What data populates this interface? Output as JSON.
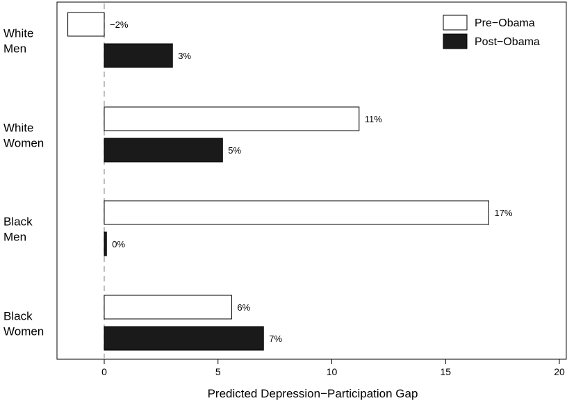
{
  "chart_data": {
    "type": "bar",
    "orientation": "horizontal",
    "categories": [
      "White Men",
      "White Women",
      "Black Men",
      "Black Women"
    ],
    "category_lines": [
      [
        "White",
        "Men"
      ],
      [
        "White",
        "Women"
      ],
      [
        "Black",
        "Men"
      ],
      [
        "Black",
        "Women"
      ]
    ],
    "series": [
      {
        "name": "Pre−Obama",
        "values": [
          -1.6,
          11.2,
          16.9,
          5.6
        ],
        "labels": [
          "−2%",
          "11%",
          "17%",
          "6%"
        ],
        "color": "#ffffff"
      },
      {
        "name": "Post−Obama",
        "values": [
          3.0,
          5.2,
          0.1,
          7.0
        ],
        "labels": [
          "3%",
          "5%",
          "0%",
          "7%"
        ],
        "color": "#1a1a1a"
      }
    ],
    "xlabel": "Predicted Depression−Participation Gap",
    "xlim": [
      -2,
      20
    ],
    "xticks": [
      0,
      5,
      10,
      15,
      20
    ],
    "reference_line": {
      "x": 0,
      "style": "dashed",
      "color": "#aaaaaa"
    },
    "legend_position": "top-right",
    "grid": false
  }
}
